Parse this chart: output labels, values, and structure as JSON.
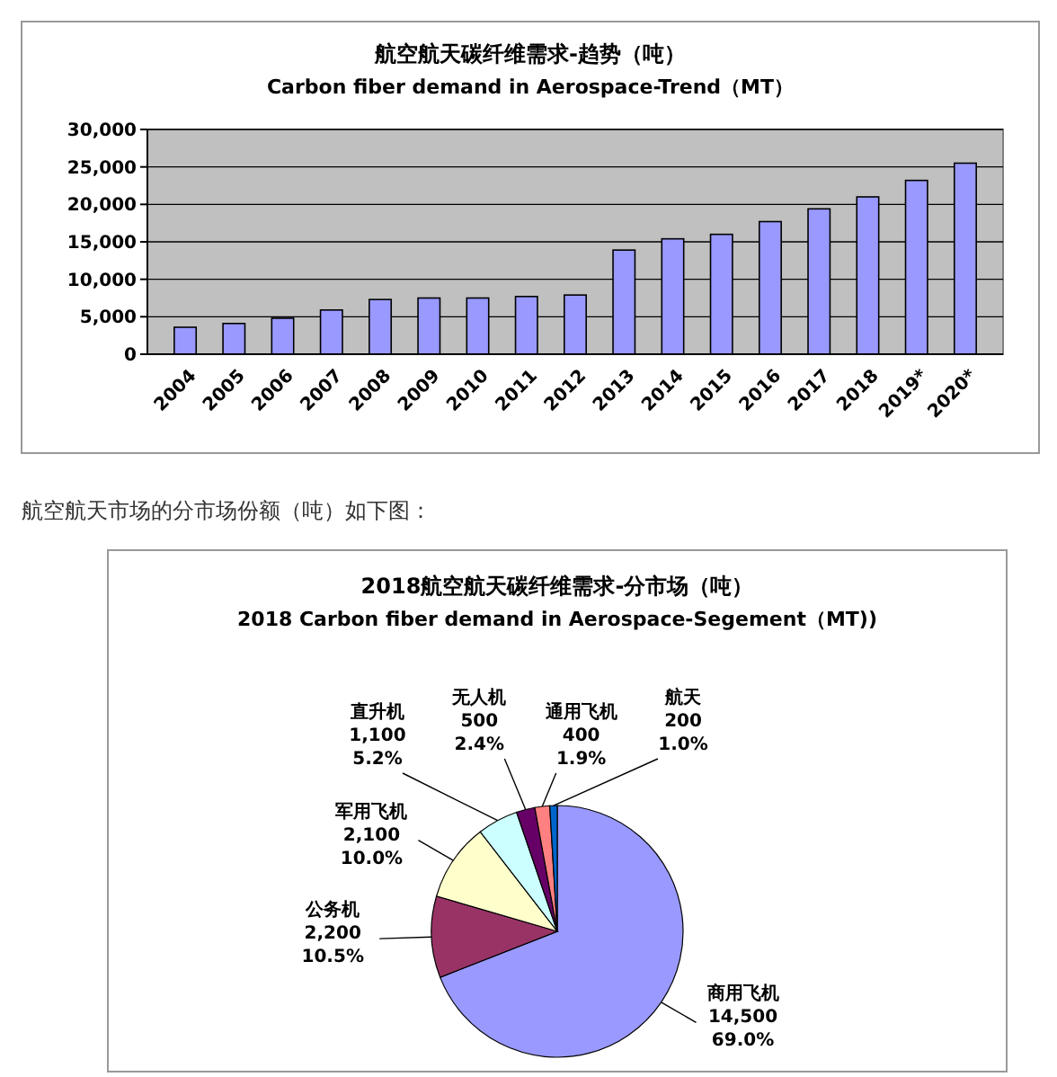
{
  "chart_data": [
    {
      "type": "bar",
      "title": "航空航天碳纤维需求-趋势（吨）",
      "subtitle": "Carbon fiber demand in Aerospace-Trend（MT）",
      "categories": [
        "2004",
        "2005",
        "2006",
        "2007",
        "2008",
        "2009",
        "2010",
        "2011",
        "2012",
        "2013",
        "2014",
        "2015",
        "2016",
        "2017",
        "2018",
        "2019*",
        "2020*"
      ],
      "values": [
        3600,
        4100,
        4800,
        5900,
        7300,
        7500,
        7500,
        7700,
        7900,
        13900,
        15400,
        16000,
        17700,
        19400,
        21000,
        23200,
        25500
      ],
      "color": "#9999ff",
      "ylim": [
        0,
        30000
      ],
      "yticks": [
        0,
        {
          "value": 5000,
          "label": "5,000"
        },
        {
          "value": 10000,
          "label": "10,000"
        },
        {
          "value": 15000,
          "label": "15,000"
        },
        {
          "value": 20000,
          "label": "20,000"
        },
        {
          "value": 25000,
          "label": "25,000"
        },
        {
          "value": 30000,
          "label": "30,000"
        }
      ],
      "grid": "y"
    },
    {
      "type": "pie",
      "title": "2018航空航天碳纤维需求-分市场（吨）",
      "subtitle": "2018 Carbon fiber demand in Aerospace-Segement（MT))",
      "annotations": [
        "航空航天市场的分市场份额（吨）如下图："
      ],
      "categories": [
        "商用飞机",
        "公务机",
        "军用飞机",
        "直升机",
        "无人机",
        "通用飞机",
        "航天"
      ],
      "values": [
        14500,
        2200,
        2100,
        1100,
        500,
        400,
        200
      ],
      "colors": [
        "#9999ff",
        "#993366",
        "#ffffcc",
        "#ccffff",
        "#660066",
        "#ff8080",
        "#0066cc"
      ],
      "value_labels": [
        "14,500\n69.0%",
        "2,200\n10.5%",
        "2,100\n10.0%",
        "1,100\n5.2%",
        "500\n2.4%",
        "400\n1.9%",
        "200\n1.0%"
      ]
    }
  ]
}
